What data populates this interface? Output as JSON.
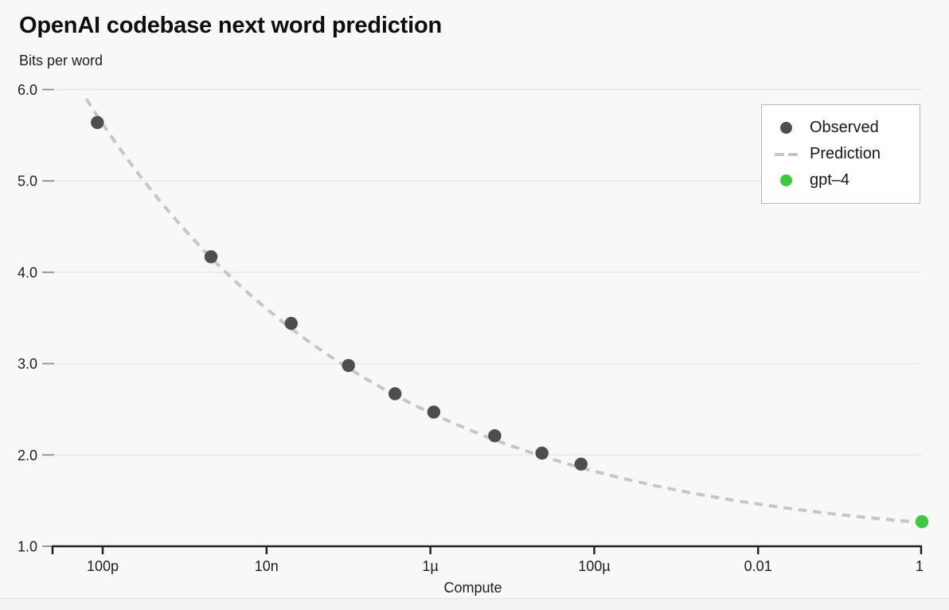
{
  "chart": {
    "title": "OpenAI codebase next word prediction",
    "y_axis_label": "Bits per word",
    "x_axis_label": "Compute"
  },
  "legend": {
    "position": "top-right",
    "items": [
      {
        "id": "observed",
        "label": "Observed",
        "swatch": "dot",
        "color": "#4d4d52"
      },
      {
        "id": "prediction",
        "label": "Prediction",
        "swatch": "dashes",
        "color": "#c6c6c6"
      },
      {
        "id": "gpt-4",
        "label": "gpt–4",
        "swatch": "dot",
        "color": "#3ec842"
      }
    ]
  },
  "chart_data": {
    "type": "scatter",
    "title": "OpenAI codebase next word prediction",
    "xlabel": "Compute",
    "ylabel": "Bits per word",
    "x_scale": "log10",
    "xlim": [
      2.4e-11,
      1.2
    ],
    "ylim": [
      1.0,
      6.0
    ],
    "y_ticks": [
      1.0,
      2.0,
      3.0,
      4.0,
      5.0,
      6.0
    ],
    "x_ticks": [
      {
        "value": 1e-10,
        "label": "100p"
      },
      {
        "value": 1e-08,
        "label": "10n"
      },
      {
        "value": 1e-06,
        "label": "1µ"
      },
      {
        "value": 0.0001,
        "label": "100µ"
      },
      {
        "value": 0.01,
        "label": "0.01"
      },
      {
        "value": 1,
        "label": "1"
      }
    ],
    "grid": "horizontal-only",
    "legend_position": "top-right",
    "colors": {
      "background": "#f8f8f9",
      "gridline": "#e9e9ed",
      "axis": "#222226",
      "tick_dash": "#97979c",
      "text": "#202024"
    },
    "series": [
      {
        "name": "Observed",
        "type": "scatter",
        "color": "#4d4d52",
        "marker_radius": 8.2,
        "points": [
          [
            8.6e-11,
            5.64
          ],
          [
            2.1e-09,
            4.17
          ],
          [
            2e-08,
            3.44
          ],
          [
            1e-07,
            2.98
          ],
          [
            3.7e-07,
            2.67
          ],
          [
            1.1e-06,
            2.47
          ],
          [
            6.1e-06,
            2.21
          ],
          [
            2.3e-05,
            2.02
          ],
          [
            6.9e-05,
            1.9
          ]
        ]
      },
      {
        "name": "Prediction",
        "type": "line",
        "style": "dashed",
        "color": "#c6c6c6",
        "fit": {
          "formula": "bits_per_word = a * compute^b + c",
          "a": 0.26,
          "b": -0.125,
          "c": 1.0
        },
        "x_range": [
          6.3e-11,
          1.2
        ]
      },
      {
        "name": "gpt-4",
        "type": "scatter",
        "color": "#3ec842",
        "marker_radius": 8.2,
        "points": [
          [
            1.0,
            1.27
          ]
        ]
      }
    ]
  }
}
